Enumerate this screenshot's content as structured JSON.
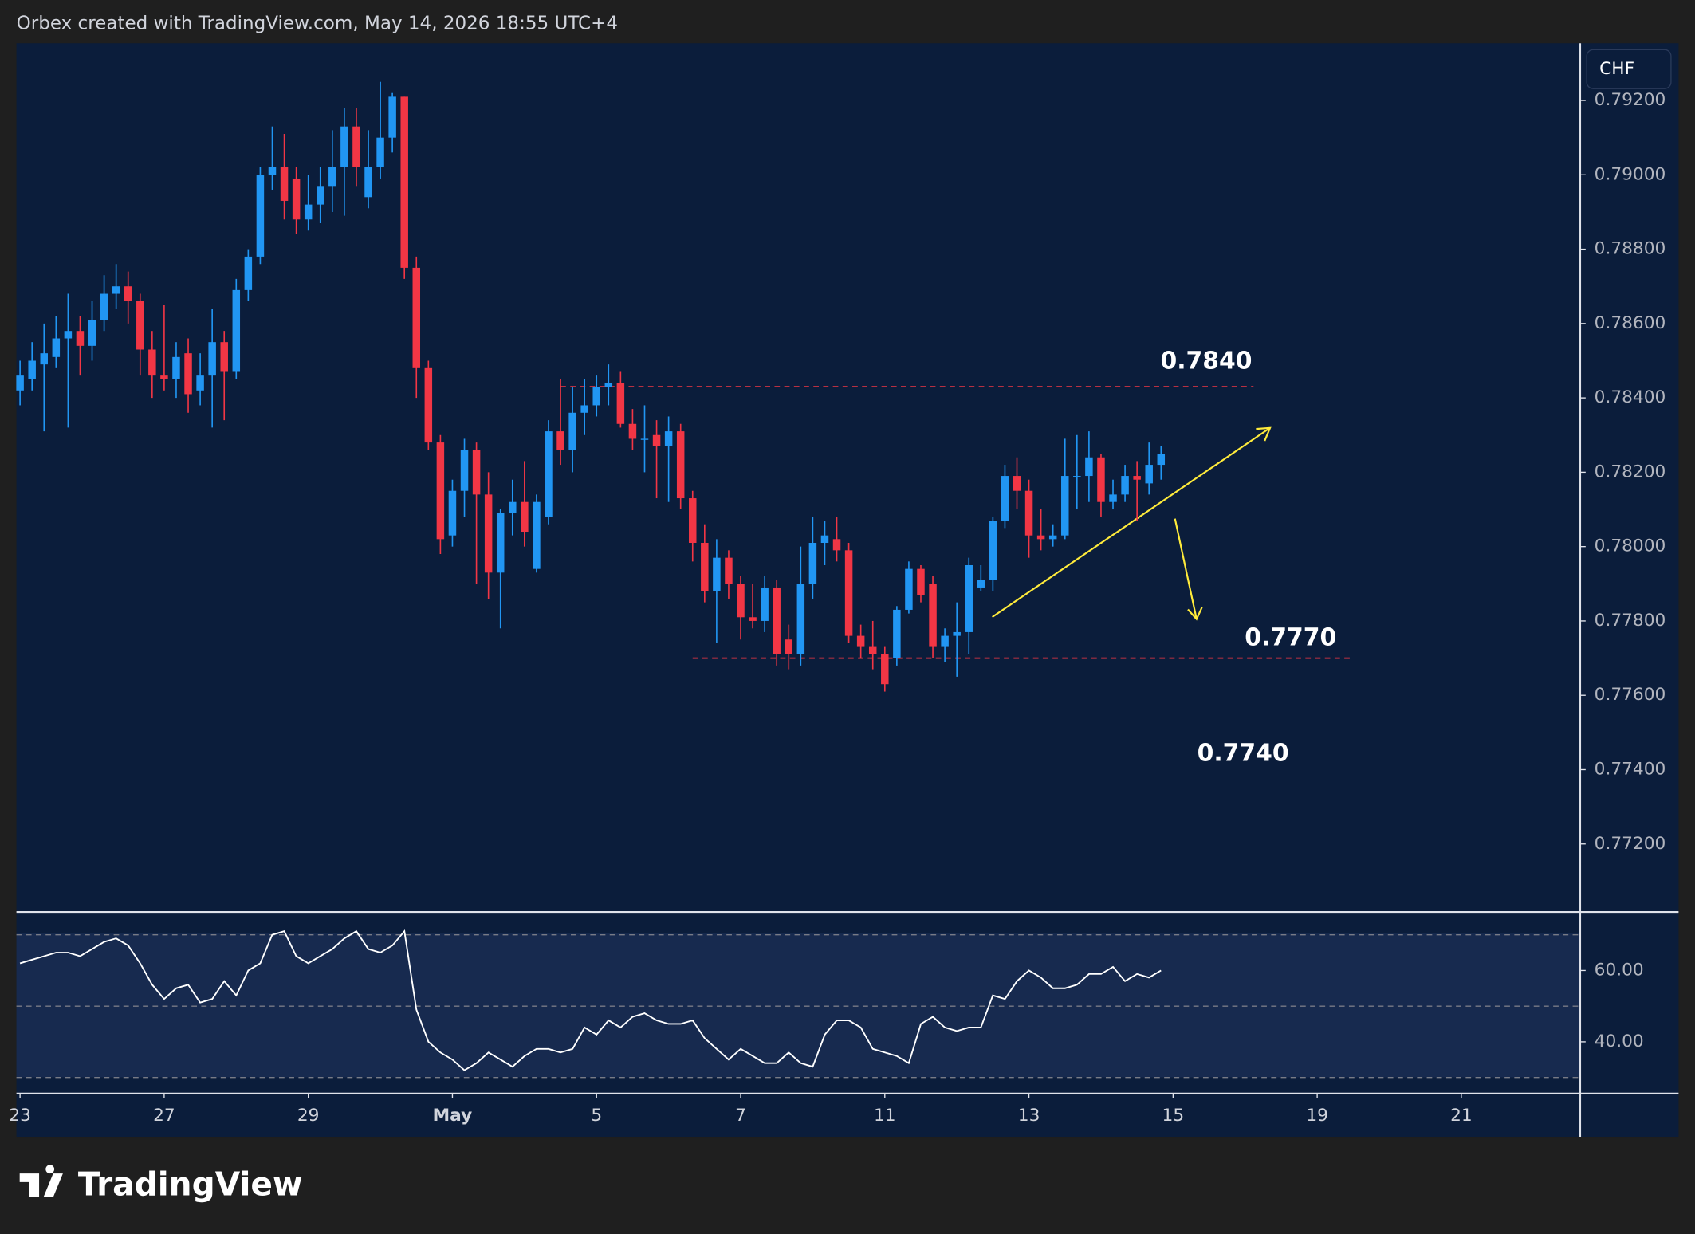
{
  "header": "Orbex created with TradingView.com, May 14, 2026 18:55 UTC+4",
  "currency_badge": "CHF",
  "brand": "TradingView",
  "chart_data": {
    "type": "candlestick",
    "up_color": "#2196f3",
    "down_color": "#f23645",
    "open": [
      0.7842,
      0.7845,
      0.7849,
      0.7851,
      0.7856,
      0.7858,
      0.7854,
      0.7861,
      0.7868,
      0.787,
      0.7866,
      0.7853,
      0.7846,
      0.7845,
      0.7852,
      0.7842,
      0.7846,
      0.7855,
      0.7847,
      0.7869,
      0.7878,
      0.79,
      0.7902,
      0.7899,
      0.7888,
      0.7892,
      0.7897,
      0.7902,
      0.7913,
      0.7894,
      0.7902,
      0.791,
      0.7921,
      0.7875,
      0.7848,
      0.7828,
      0.7803,
      0.7815,
      0.7826,
      0.7814,
      0.7793,
      0.7809,
      0.7812,
      0.7794,
      0.7808,
      0.7831,
      0.7826,
      0.7836,
      0.7838,
      0.7843,
      0.7844,
      0.7833,
      0.7829,
      0.783,
      0.7827,
      0.7831,
      0.7813,
      0.7801,
      0.7788,
      0.7797,
      0.779,
      0.7781,
      0.778,
      0.7789,
      0.7775,
      0.7771,
      0.779,
      0.7801,
      0.7802,
      0.7799,
      0.7776,
      0.7773,
      0.7771,
      0.777,
      0.7783,
      0.7794,
      0.779,
      0.7773,
      0.7776,
      0.7777,
      0.7789,
      0.7791,
      0.7807,
      0.7819,
      0.7815,
      0.7803,
      0.7802,
      0.7803,
      0.7819,
      0.7819,
      0.7824,
      0.7812,
      0.7814,
      0.7819,
      0.7817,
      0.7822
    ],
    "high": [
      0.785,
      0.7855,
      0.786,
      0.7862,
      0.7868,
      0.7862,
      0.7866,
      0.7873,
      0.7876,
      0.7874,
      0.7868,
      0.7858,
      0.7865,
      0.7855,
      0.7856,
      0.7852,
      0.7864,
      0.7858,
      0.7872,
      0.788,
      0.7902,
      0.7913,
      0.7911,
      0.7902,
      0.79,
      0.7902,
      0.7912,
      0.7918,
      0.7918,
      0.7912,
      0.7925,
      0.7922,
      0.7921,
      0.7878,
      0.785,
      0.783,
      0.7818,
      0.7829,
      0.7828,
      0.782,
      0.781,
      0.7818,
      0.7823,
      0.7814,
      0.7834,
      0.7845,
      0.7843,
      0.7845,
      0.7846,
      0.7849,
      0.7847,
      0.7837,
      0.7838,
      0.7834,
      0.7835,
      0.7833,
      0.7815,
      0.7806,
      0.7802,
      0.7799,
      0.7792,
      0.779,
      0.7792,
      0.7791,
      0.7779,
      0.78,
      0.7808,
      0.7807,
      0.7808,
      0.7801,
      0.7779,
      0.778,
      0.7773,
      0.7784,
      0.7796,
      0.7795,
      0.7792,
      0.7778,
      0.7785,
      0.7797,
      0.7795,
      0.7808,
      0.7822,
      0.7824,
      0.7818,
      0.781,
      0.7806,
      0.7829,
      0.783,
      0.7831,
      0.7825,
      0.7818,
      0.7822,
      0.7823,
      0.7828,
      0.7827
    ],
    "low": [
      0.7838,
      0.7842,
      0.7831,
      0.7848,
      0.7832,
      0.7846,
      0.785,
      0.7858,
      0.7864,
      0.786,
      0.7846,
      0.784,
      0.7842,
      0.784,
      0.7836,
      0.7838,
      0.7832,
      0.7834,
      0.7845,
      0.7866,
      0.7876,
      0.7896,
      0.7888,
      0.7884,
      0.7885,
      0.7887,
      0.789,
      0.7889,
      0.7897,
      0.7891,
      0.7899,
      0.7906,
      0.7872,
      0.784,
      0.7826,
      0.7798,
      0.78,
      0.7808,
      0.779,
      0.7786,
      0.7778,
      0.7803,
      0.78,
      0.7793,
      0.7806,
      0.7822,
      0.782,
      0.783,
      0.7835,
      0.7838,
      0.7832,
      0.7826,
      0.782,
      0.7813,
      0.7812,
      0.781,
      0.7796,
      0.7785,
      0.7774,
      0.7786,
      0.7775,
      0.7778,
      0.7777,
      0.7768,
      0.7767,
      0.7768,
      0.7786,
      0.7795,
      0.7796,
      0.7774,
      0.777,
      0.7767,
      0.7761,
      0.7768,
      0.7782,
      0.7785,
      0.777,
      0.7769,
      0.7765,
      0.7771,
      0.7788,
      0.7788,
      0.7805,
      0.781,
      0.7797,
      0.7799,
      0.78,
      0.7802,
      0.781,
      0.7812,
      0.7808,
      0.781,
      0.7812,
      0.7807,
      0.7814,
      0.7818
    ],
    "close": [
      0.7846,
      0.785,
      0.7852,
      0.7856,
      0.7858,
      0.7854,
      0.7861,
      0.7868,
      0.787,
      0.7866,
      0.7853,
      0.7846,
      0.7845,
      0.7851,
      0.7841,
      0.7846,
      0.7855,
      0.7847,
      0.7869,
      0.7878,
      0.79,
      0.7902,
      0.7893,
      0.7888,
      0.7892,
      0.7897,
      0.7902,
      0.7913,
      0.7902,
      0.7902,
      0.791,
      0.7921,
      0.7875,
      0.7848,
      0.7828,
      0.7802,
      0.7815,
      0.7826,
      0.7814,
      0.7793,
      0.7809,
      0.7812,
      0.7804,
      0.7812,
      0.7831,
      0.7826,
      0.7836,
      0.7838,
      0.7843,
      0.7844,
      0.7833,
      0.7829,
      0.7829,
      0.7827,
      0.7831,
      0.7813,
      0.7801,
      0.7788,
      0.7797,
      0.779,
      0.7781,
      0.778,
      0.7789,
      0.7771,
      0.7771,
      0.779,
      0.7801,
      0.7803,
      0.7799,
      0.7776,
      0.7773,
      0.7771,
      0.7763,
      0.7783,
      0.7794,
      0.7787,
      0.7773,
      0.7776,
      0.7777,
      0.7795,
      0.7791,
      0.7807,
      0.7819,
      0.7815,
      0.7803,
      0.7802,
      0.7803,
      0.7819,
      0.7819,
      0.7824,
      0.7812,
      0.7814,
      0.7819,
      0.7818,
      0.7822,
      0.7825
    ],
    "xlim": [
      -0.3,
      129.9
    ],
    "xticks": [
      {
        "value": 0,
        "label": "23"
      },
      {
        "value": 12,
        "label": "27"
      },
      {
        "value": 24,
        "label": "29"
      },
      {
        "value": 36,
        "label": "May"
      },
      {
        "value": 48,
        "label": "5"
      },
      {
        "value": 60,
        "label": "7"
      },
      {
        "value": 72,
        "label": "11"
      },
      {
        "value": 84,
        "label": "13"
      },
      {
        "value": 96,
        "label": "15"
      },
      {
        "value": 108,
        "label": "19"
      },
      {
        "value": 120,
        "label": "21"
      }
    ],
    "ylim": [
      0.7702,
      0.79354
    ],
    "yticks": [
      {
        "value": 0.792,
        "label": "0.79200"
      },
      {
        "value": 0.79,
        "label": "0.79000"
      },
      {
        "value": 0.788,
        "label": "0.78800"
      },
      {
        "value": 0.786,
        "label": "0.78600"
      },
      {
        "value": 0.784,
        "label": "0.78400"
      },
      {
        "value": 0.782,
        "label": "0.78200"
      },
      {
        "value": 0.78,
        "label": "0.78000"
      },
      {
        "value": 0.778,
        "label": "0.77800"
      },
      {
        "value": 0.776,
        "label": "0.77600"
      },
      {
        "value": 0.774,
        "label": "0.77400"
      },
      {
        "value": 0.772,
        "label": "0.77200"
      }
    ],
    "grid": false,
    "levels": [
      0.7843,
      0.777
    ],
    "level_color": "#f23645",
    "annotations": [
      "0.7840",
      "0.7770",
      "0.7740"
    ],
    "indicator": {
      "type": "line",
      "color": "#ffffff",
      "values": [
        62,
        63,
        64,
        65,
        65,
        64,
        66,
        68,
        69,
        67,
        62,
        56,
        52,
        55,
        56,
        51,
        52,
        57,
        53,
        60,
        62,
        70,
        71,
        64,
        62,
        64,
        66,
        69,
        71,
        66,
        65,
        67,
        71,
        49,
        40,
        37,
        35,
        32,
        34,
        37,
        35,
        33,
        36,
        38,
        38,
        37,
        38,
        44,
        42,
        46,
        44,
        47,
        48,
        46,
        45,
        45,
        46,
        41,
        38,
        35,
        38,
        36,
        34,
        34,
        37,
        34,
        33,
        42,
        46,
        46,
        44,
        38,
        37,
        36,
        34,
        45,
        47,
        44,
        43,
        44,
        44,
        53,
        52,
        57,
        60,
        58,
        55,
        55,
        56,
        59,
        59,
        61,
        57,
        59,
        58,
        60
      ],
      "ylim": [
        25.5,
        76.1
      ],
      "yticks": [
        {
          "value": 60,
          "label": "60.00"
        },
        {
          "value": 40,
          "label": "40.00"
        }
      ],
      "bands": [
        30,
        50,
        70
      ]
    }
  }
}
